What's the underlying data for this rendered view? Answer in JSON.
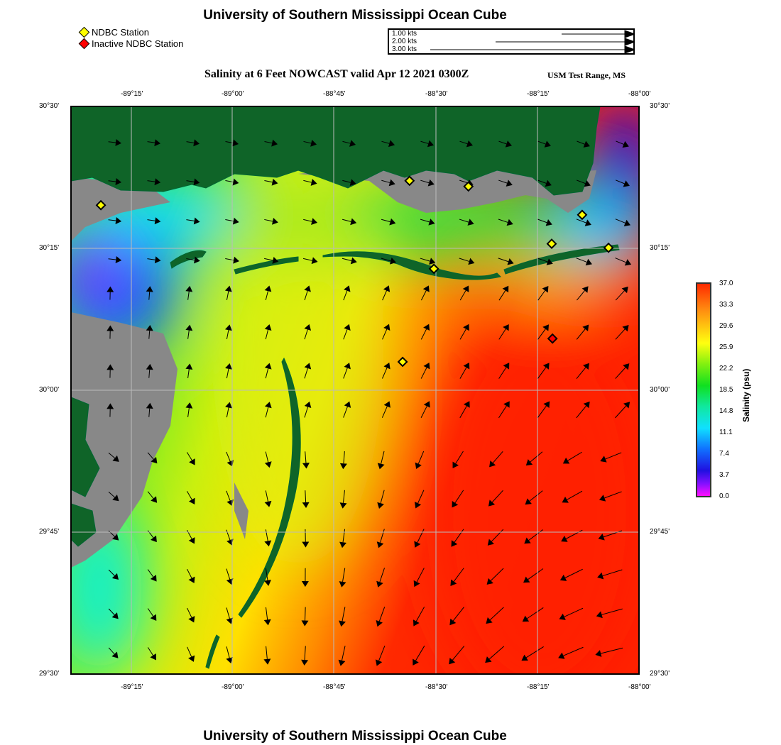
{
  "header": {
    "title": "University of Southern Mississippi Ocean Cube"
  },
  "legend": {
    "items": [
      {
        "label": "NDBC Station",
        "color": "#ffff00"
      },
      {
        "label": "Inactive NDBC Station",
        "color": "#ff0000"
      }
    ]
  },
  "vector_scale": {
    "labels": [
      "1.00 kts",
      "2.00 kts",
      "3.00 kts"
    ],
    "speeds_kts": [
      1,
      2,
      3
    ]
  },
  "map": {
    "title": "Salinity at 6 Feet NOWCAST valid Apr 12 2021 0300Z",
    "region": "USM Test Range, MS",
    "lon_ticks": [
      "-89°15'",
      "-89°00'",
      "-88°45'",
      "-88°30'",
      "-88°15'",
      "-88°00'"
    ],
    "lat_ticks": [
      "30°30'",
      "30°15'",
      "30°00'",
      "29°45'",
      "29°30'"
    ],
    "stations": [
      {
        "lon": -89.325,
        "lat": 30.326,
        "active": true
      },
      {
        "lon": -88.565,
        "lat": 30.369,
        "active": true
      },
      {
        "lon": -88.42,
        "lat": 30.359,
        "active": true
      },
      {
        "lon": -88.505,
        "lat": 30.214,
        "active": true
      },
      {
        "lon": -88.215,
        "lat": 30.258,
        "active": true
      },
      {
        "lon": -88.14,
        "lat": 30.309,
        "active": true
      },
      {
        "lon": -88.075,
        "lat": 30.251,
        "active": true
      },
      {
        "lon": -88.582,
        "lat": 30.05,
        "active": true
      },
      {
        "lon": -88.213,
        "lat": 30.091,
        "active": false
      }
    ]
  },
  "colorbar": {
    "title": "Salinity (psu)",
    "ticks": [
      "37.0",
      "33.3",
      "29.6",
      "25.9",
      "22.2",
      "18.5",
      "14.8",
      "11.1",
      "7.4",
      "3.7",
      "0.0"
    ],
    "range": [
      0,
      37
    ]
  },
  "footer": {
    "title": "University of Southern Mississippi Ocean Cube"
  }
}
